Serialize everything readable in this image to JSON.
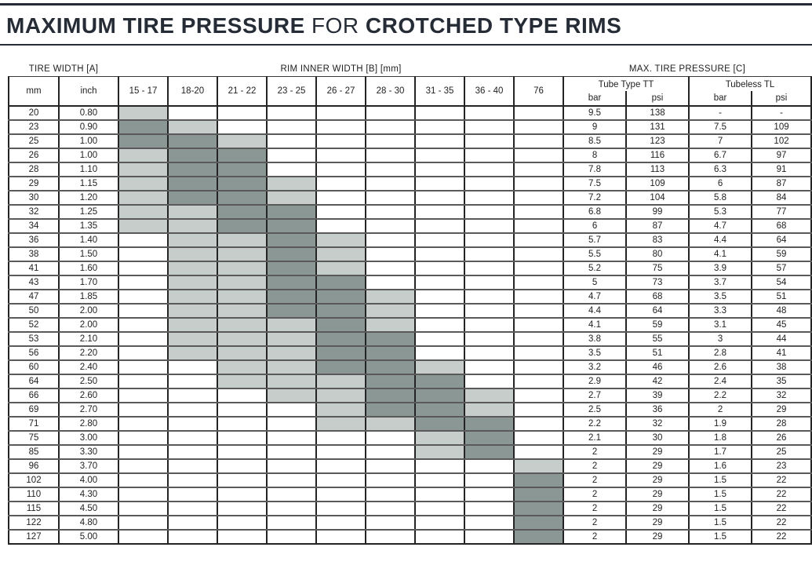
{
  "title": {
    "bold1": "MAXIMUM TIRE PRESSURE",
    "regular": " FOR ",
    "bold2": "CROTCHED TYPE RIMS"
  },
  "table": {
    "group_headers": {
      "tire_width": "TIRE WIDTH [A]",
      "rim_inner_width": "RIM INNER WIDTH [B] [mm]",
      "max_pressure": "MAX. TIRE PRESSURE [C]"
    },
    "unit_headers": {
      "mm": "mm",
      "inch": "inch"
    },
    "rim_columns": [
      "15 - 17",
      "18-20",
      "21 - 22",
      "23 - 25",
      "26 - 27",
      "28 - 30",
      "31 - 35",
      "36 - 40",
      "76"
    ],
    "pressure_groups": [
      {
        "label": "Tube Type TT",
        "units": [
          "bar",
          "psi"
        ]
      },
      {
        "label": "Tubeless TL",
        "units": [
          "bar",
          "psi"
        ]
      }
    ],
    "legend_colors": {
      "light": "#c6cdcb",
      "dark": "#8b9795"
    },
    "rows": [
      {
        "mm": "20",
        "inch": "0.80",
        "shades": [
          "L",
          "",
          "",
          "",
          "",
          "",
          "",
          "",
          ""
        ],
        "tt_bar": "9.5",
        "tt_psi": "138",
        "tl_bar": "-",
        "tl_psi": "-"
      },
      {
        "mm": "23",
        "inch": "0.90",
        "shades": [
          "D",
          "L",
          "",
          "",
          "",
          "",
          "",
          "",
          ""
        ],
        "tt_bar": "9",
        "tt_psi": "131",
        "tl_bar": "7.5",
        "tl_psi": "109"
      },
      {
        "mm": "25",
        "inch": "1.00",
        "shades": [
          "D",
          "D",
          "L",
          "",
          "",
          "",
          "",
          "",
          ""
        ],
        "tt_bar": "8.5",
        "tt_psi": "123",
        "tl_bar": "7",
        "tl_psi": "102"
      },
      {
        "mm": "26",
        "inch": "1.00",
        "shades": [
          "L",
          "D",
          "D",
          "",
          "",
          "",
          "",
          "",
          ""
        ],
        "tt_bar": "8",
        "tt_psi": "116",
        "tl_bar": "6.7",
        "tl_psi": "97"
      },
      {
        "mm": "28",
        "inch": "1.10",
        "shades": [
          "L",
          "D",
          "D",
          "",
          "",
          "",
          "",
          "",
          ""
        ],
        "tt_bar": "7.8",
        "tt_psi": "113",
        "tl_bar": "6.3",
        "tl_psi": "91"
      },
      {
        "mm": "29",
        "inch": "1.15",
        "shades": [
          "L",
          "D",
          "D",
          "L",
          "",
          "",
          "",
          "",
          ""
        ],
        "tt_bar": "7.5",
        "tt_psi": "109",
        "tl_bar": "6",
        "tl_psi": "87"
      },
      {
        "mm": "30",
        "inch": "1.20",
        "shades": [
          "L",
          "D",
          "D",
          "L",
          "",
          "",
          "",
          "",
          ""
        ],
        "tt_bar": "7.2",
        "tt_psi": "104",
        "tl_bar": "5.8",
        "tl_psi": "84"
      },
      {
        "mm": "32",
        "inch": "1.25",
        "shades": [
          "L",
          "L",
          "D",
          "D",
          "",
          "",
          "",
          "",
          ""
        ],
        "tt_bar": "6.8",
        "tt_psi": "99",
        "tl_bar": "5.3",
        "tl_psi": "77"
      },
      {
        "mm": "34",
        "inch": "1.35",
        "shades": [
          "L",
          "L",
          "D",
          "D",
          "",
          "",
          "",
          "",
          ""
        ],
        "tt_bar": "6",
        "tt_psi": "87",
        "tl_bar": "4.7",
        "tl_psi": "68"
      },
      {
        "mm": "36",
        "inch": "1.40",
        "shades": [
          "",
          "L",
          "L",
          "D",
          "L",
          "",
          "",
          "",
          ""
        ],
        "tt_bar": "5.7",
        "tt_psi": "83",
        "tl_bar": "4.4",
        "tl_psi": "64"
      },
      {
        "mm": "38",
        "inch": "1.50",
        "shades": [
          "",
          "L",
          "L",
          "D",
          "L",
          "",
          "",
          "",
          ""
        ],
        "tt_bar": "5.5",
        "tt_psi": "80",
        "tl_bar": "4.1",
        "tl_psi": "59"
      },
      {
        "mm": "41",
        "inch": "1.60",
        "shades": [
          "",
          "L",
          "L",
          "D",
          "L",
          "",
          "",
          "",
          ""
        ],
        "tt_bar": "5.2",
        "tt_psi": "75",
        "tl_bar": "3.9",
        "tl_psi": "57"
      },
      {
        "mm": "43",
        "inch": "1.70",
        "shades": [
          "",
          "L",
          "L",
          "D",
          "D",
          "",
          "",
          "",
          ""
        ],
        "tt_bar": "5",
        "tt_psi": "73",
        "tl_bar": "3.7",
        "tl_psi": "54"
      },
      {
        "mm": "47",
        "inch": "1.85",
        "shades": [
          "",
          "L",
          "L",
          "D",
          "D",
          "L",
          "",
          "",
          ""
        ],
        "tt_bar": "4.7",
        "tt_psi": "68",
        "tl_bar": "3.5",
        "tl_psi": "51"
      },
      {
        "mm": "50",
        "inch": "2.00",
        "shades": [
          "",
          "L",
          "L",
          "D",
          "D",
          "L",
          "",
          "",
          ""
        ],
        "tt_bar": "4.4",
        "tt_psi": "64",
        "tl_bar": "3.3",
        "tl_psi": "48"
      },
      {
        "mm": "52",
        "inch": "2.00",
        "shades": [
          "",
          "L",
          "L",
          "L",
          "D",
          "L",
          "",
          "",
          ""
        ],
        "tt_bar": "4.1",
        "tt_psi": "59",
        "tl_bar": "3.1",
        "tl_psi": "45"
      },
      {
        "mm": "53",
        "inch": "2.10",
        "shades": [
          "",
          "L",
          "L",
          "L",
          "D",
          "D",
          "",
          "",
          ""
        ],
        "tt_bar": "3.8",
        "tt_psi": "55",
        "tl_bar": "3",
        "tl_psi": "44"
      },
      {
        "mm": "56",
        "inch": "2.20",
        "shades": [
          "",
          "L",
          "L",
          "L",
          "D",
          "D",
          "",
          "",
          ""
        ],
        "tt_bar": "3.5",
        "tt_psi": "51",
        "tl_bar": "2.8",
        "tl_psi": "41"
      },
      {
        "mm": "60",
        "inch": "2.40",
        "shades": [
          "",
          "",
          "L",
          "L",
          "D",
          "D",
          "L",
          "",
          ""
        ],
        "tt_bar": "3.2",
        "tt_psi": "46",
        "tl_bar": "2.6",
        "tl_psi": "38"
      },
      {
        "mm": "64",
        "inch": "2.50",
        "shades": [
          "",
          "",
          "L",
          "L",
          "L",
          "D",
          "D",
          "",
          ""
        ],
        "tt_bar": "2.9",
        "tt_psi": "42",
        "tl_bar": "2.4",
        "tl_psi": "35"
      },
      {
        "mm": "66",
        "inch": "2.60",
        "shades": [
          "",
          "",
          "",
          "L",
          "L",
          "D",
          "D",
          "L",
          ""
        ],
        "tt_bar": "2.7",
        "tt_psi": "39",
        "tl_bar": "2.2",
        "tl_psi": "32"
      },
      {
        "mm": "69",
        "inch": "2.70",
        "shades": [
          "",
          "",
          "",
          "",
          "L",
          "D",
          "D",
          "L",
          ""
        ],
        "tt_bar": "2.5",
        "tt_psi": "36",
        "tl_bar": "2",
        "tl_psi": "29"
      },
      {
        "mm": "71",
        "inch": "2.80",
        "shades": [
          "",
          "",
          "",
          "",
          "L",
          "L",
          "D",
          "D",
          ""
        ],
        "tt_bar": "2.2",
        "tt_psi": "32",
        "tl_bar": "1.9",
        "tl_psi": "28"
      },
      {
        "mm": "75",
        "inch": "3.00",
        "shades": [
          "",
          "",
          "",
          "",
          "",
          "",
          "L",
          "D",
          ""
        ],
        "tt_bar": "2.1",
        "tt_psi": "30",
        "tl_bar": "1.8",
        "tl_psi": "26"
      },
      {
        "mm": "85",
        "inch": "3.30",
        "shades": [
          "",
          "",
          "",
          "",
          "",
          "",
          "L",
          "D",
          ""
        ],
        "tt_bar": "2",
        "tt_psi": "29",
        "tl_bar": "1.7",
        "tl_psi": "25"
      },
      {
        "mm": "96",
        "inch": "3.70",
        "shades": [
          "",
          "",
          "",
          "",
          "",
          "",
          "",
          "",
          "L"
        ],
        "tt_bar": "2",
        "tt_psi": "29",
        "tl_bar": "1.6",
        "tl_psi": "23"
      },
      {
        "mm": "102",
        "inch": "4.00",
        "shades": [
          "",
          "",
          "",
          "",
          "",
          "",
          "",
          "",
          "D"
        ],
        "tt_bar": "2",
        "tt_psi": "29",
        "tl_bar": "1.5",
        "tl_psi": "22"
      },
      {
        "mm": "110",
        "inch": "4.30",
        "shades": [
          "",
          "",
          "",
          "",
          "",
          "",
          "",
          "",
          "D"
        ],
        "tt_bar": "2",
        "tt_psi": "29",
        "tl_bar": "1.5",
        "tl_psi": "22"
      },
      {
        "mm": "115",
        "inch": "4.50",
        "shades": [
          "",
          "",
          "",
          "",
          "",
          "",
          "",
          "",
          "D"
        ],
        "tt_bar": "2",
        "tt_psi": "29",
        "tl_bar": "1.5",
        "tl_psi": "22"
      },
      {
        "mm": "122",
        "inch": "4.80",
        "shades": [
          "",
          "",
          "",
          "",
          "",
          "",
          "",
          "",
          "D"
        ],
        "tt_bar": "2",
        "tt_psi": "29",
        "tl_bar": "1.5",
        "tl_psi": "22"
      },
      {
        "mm": "127",
        "inch": "5.00",
        "shades": [
          "",
          "",
          "",
          "",
          "",
          "",
          "",
          "",
          "D"
        ],
        "tt_bar": "2",
        "tt_psi": "29",
        "tl_bar": "1.5",
        "tl_psi": "22"
      }
    ]
  }
}
